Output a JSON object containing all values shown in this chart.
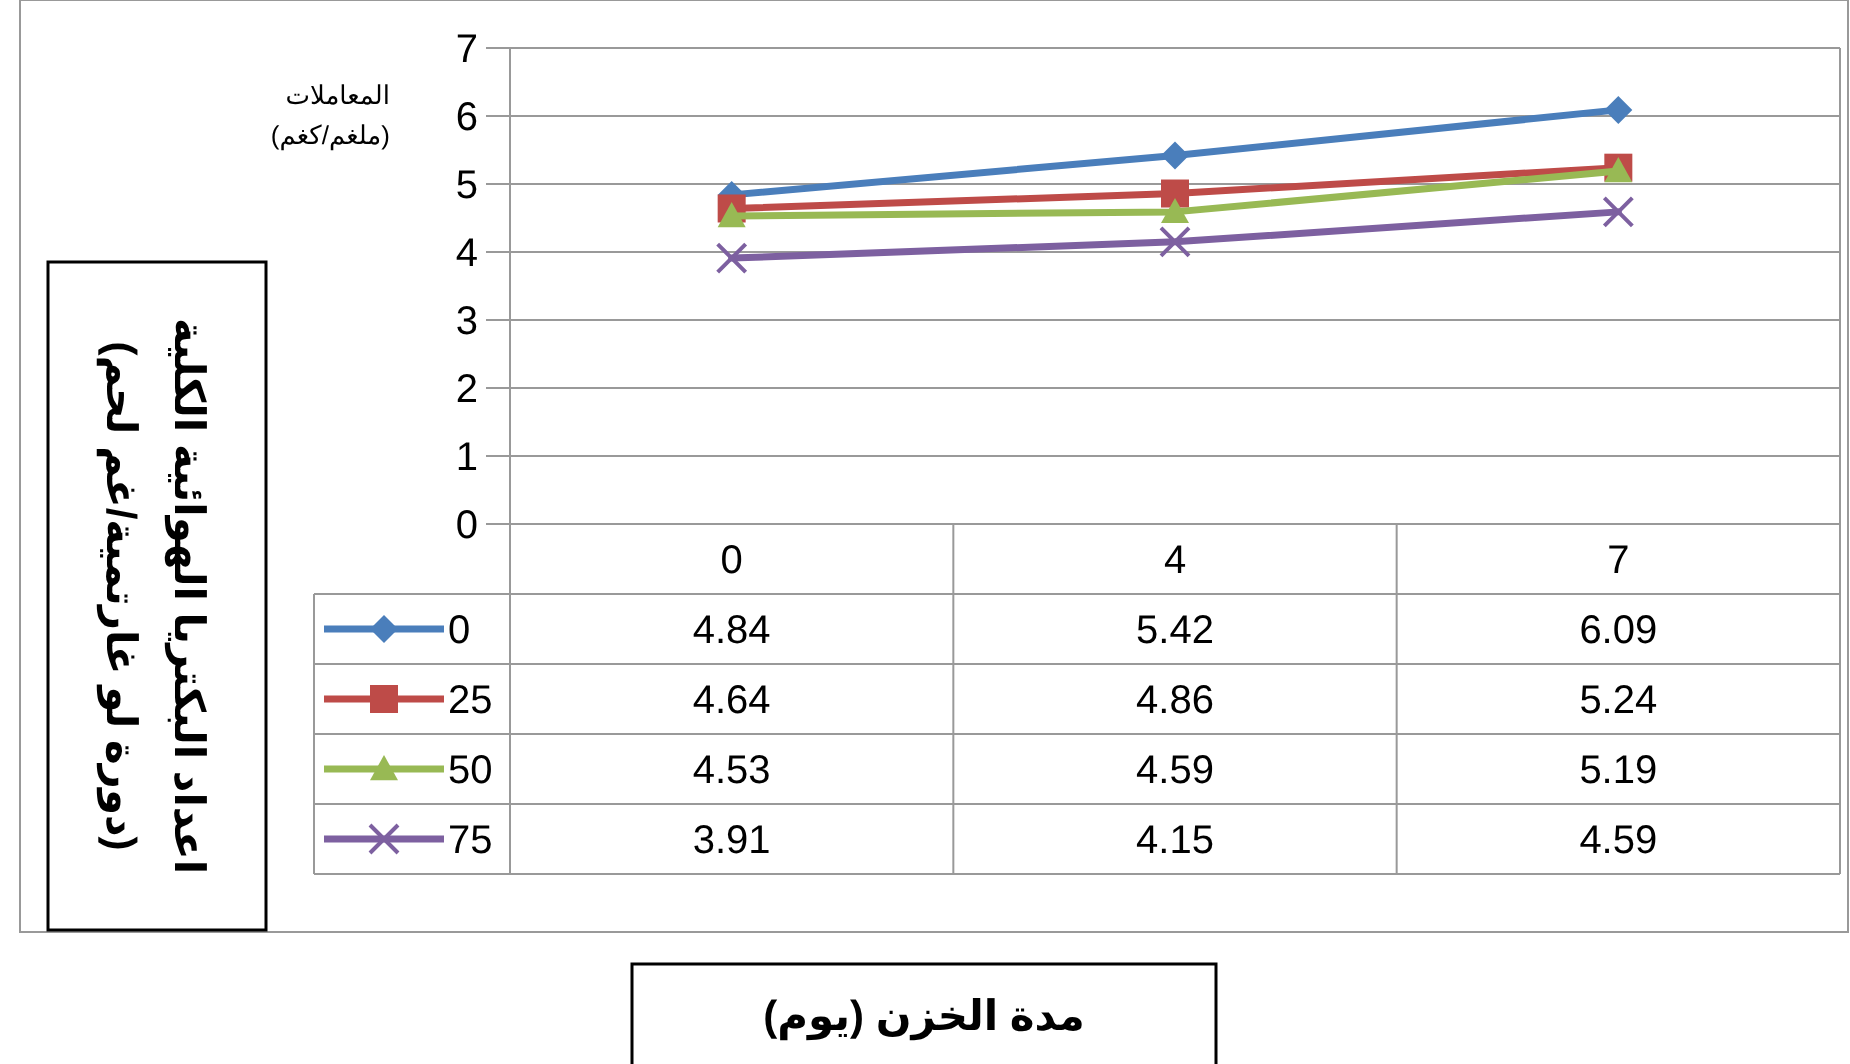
{
  "chart_data": {
    "type": "line",
    "categories": [
      "0",
      "4",
      "7"
    ],
    "annotations": [
      "اعداد البكتريا الهوائية الكلية\n(دورة لو غارتمية/غم لحم)",
      "مدة الخزن (يوم)"
    ],
    "legend_title": "المعاملات\n(ملغم/كغم)",
    "ylim": [
      0,
      7
    ],
    "yticks": [
      0,
      1,
      2,
      3,
      4,
      5,
      6,
      7
    ],
    "grid": "y",
    "legend": "bottom",
    "data_labels": true,
    "line_style": "solid",
    "series": [
      {
        "name": "0",
        "color": "#4a7ebb",
        "marker": "diamond",
        "values": [
          4.84,
          5.42,
          6.09
        ]
      },
      {
        "name": "25",
        "color": "#be4b48",
        "marker": "square",
        "values": [
          4.64,
          4.86,
          5.24
        ]
      },
      {
        "name": "50",
        "color": "#98b954",
        "marker": "triangle",
        "values": [
          4.53,
          4.59,
          5.19
        ]
      },
      {
        "name": "75",
        "color": "#7d60a0",
        "marker": "cross",
        "values": [
          3.91,
          4.15,
          4.59
        ]
      }
    ]
  }
}
